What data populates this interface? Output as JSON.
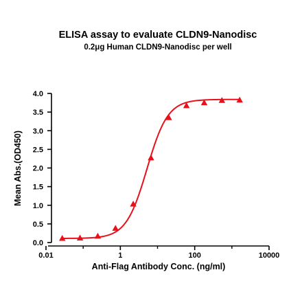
{
  "chart_data": {
    "type": "line",
    "title": "ELISA assay to evaluate CLDN9-Nanodisc",
    "subtitle": "0.2μg Human CLDN9-Nanodisc per well",
    "xlabel": "Anti-Flag Antibody Conc. (ng/ml)",
    "ylabel": "Mean Abs.(OD450)",
    "x_scale": "log",
    "xlim": [
      0.01,
      10000
    ],
    "ylim": [
      0,
      4.0
    ],
    "x_ticks": [
      {
        "value": 0.01,
        "label": "0.01"
      },
      {
        "value": 1,
        "label": "1"
      },
      {
        "value": 100,
        "label": "100"
      },
      {
        "value": 10000,
        "label": "10000"
      }
    ],
    "y_ticks": [
      {
        "value": 0.0,
        "label": "0.0"
      },
      {
        "value": 0.5,
        "label": "0.5"
      },
      {
        "value": 1.0,
        "label": "1.0"
      },
      {
        "value": 1.5,
        "label": "1.5"
      },
      {
        "value": 2.0,
        "label": "2.0"
      },
      {
        "value": 2.5,
        "label": "2.5"
      },
      {
        "value": 3.0,
        "label": "3.0"
      },
      {
        "value": 3.5,
        "label": "3.5"
      },
      {
        "value": 4.0,
        "label": "4.0"
      }
    ],
    "grid": false,
    "series": [
      {
        "color": "#e8101a",
        "marker": "triangle",
        "x": [
          0.0274,
          0.0823,
          0.247,
          0.741,
          2.22,
          6.67,
          20,
          60,
          180,
          540,
          1620
        ],
        "y": [
          0.11,
          0.12,
          0.17,
          0.38,
          1.03,
          2.27,
          3.35,
          3.67,
          3.75,
          3.81,
          3.82
        ],
        "fit": {
          "bottom": 0.11,
          "top": 3.84,
          "ec50": 5.2,
          "hill": 1.55
        }
      }
    ]
  }
}
